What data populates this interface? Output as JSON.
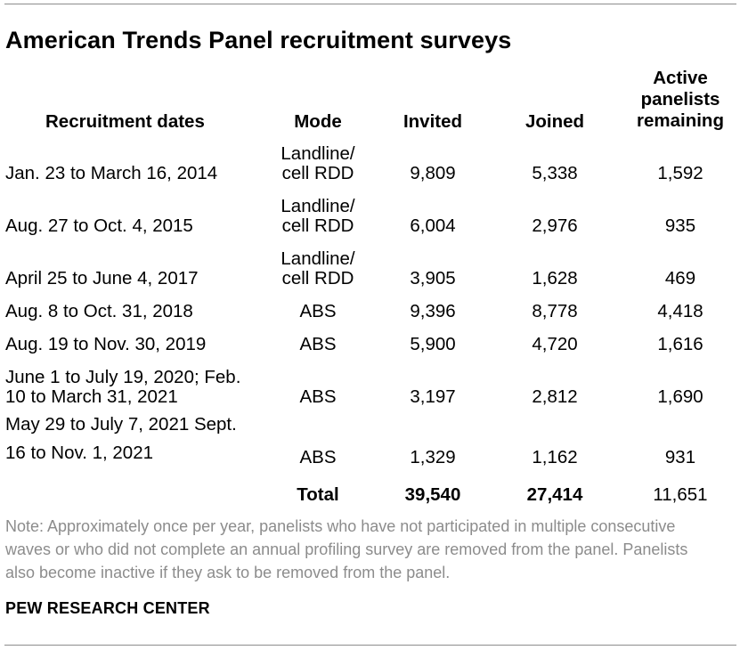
{
  "title": "American Trends Panel recruitment surveys",
  "columns": {
    "dates": "Recruitment dates",
    "mode": "Mode",
    "invited": "Invited",
    "joined": "Joined",
    "active": "Active panelists remaining"
  },
  "rows": [
    {
      "dates": "Jan. 23 to March 16, 2014",
      "mode": "Landline/ cell RDD",
      "invited": "9,809",
      "joined": "5,338",
      "active": "1,592"
    },
    {
      "dates": "Aug. 27 to Oct. 4, 2015",
      "mode": "Landline/ cell RDD",
      "invited": "6,004",
      "joined": "2,976",
      "active": "935"
    },
    {
      "dates": "April 25 to June 4, 2017",
      "mode": "Landline/ cell RDD",
      "invited": "3,905",
      "joined": "1,628",
      "active": "469"
    },
    {
      "dates": "Aug. 8 to Oct. 31, 2018",
      "mode": "ABS",
      "invited": "9,396",
      "joined": "8,778",
      "active": "4,418"
    },
    {
      "dates": "Aug. 19 to Nov. 30, 2019",
      "mode": "ABS",
      "invited": "5,900",
      "joined": "4,720",
      "active": "1,616"
    },
    {
      "dates": "June 1 to July 19, 2020; Feb. 10 to March 31, 2021",
      "mode": "ABS",
      "invited": "3,197",
      "joined": "2,812",
      "active": "1,690"
    },
    {
      "dates": "May 29 to July 7, 2021 Sept. 16 to Nov. 1, 2021",
      "mode": "ABS",
      "invited": "1,329",
      "joined": "1,162",
      "active": "931"
    }
  ],
  "total": {
    "label": "Total",
    "invited": "39,540",
    "joined": "27,414",
    "active": "11,651"
  },
  "note": "Note: Approximately once per year, panelists who have not participated in multiple consecutive waves or who did not complete an annual profiling survey are removed from the panel. Panelists also become inactive if they ask to be removed from the panel.",
  "source": "PEW RESEARCH CENTER"
}
